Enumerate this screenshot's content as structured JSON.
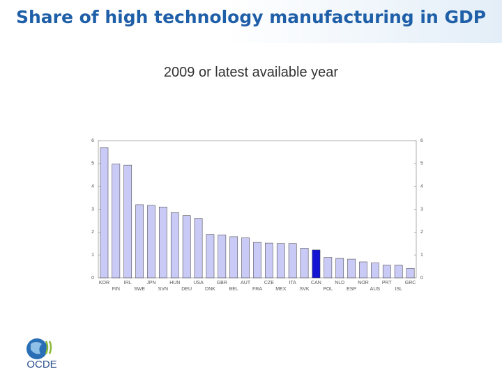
{
  "chart_data": {
    "type": "bar",
    "title": "Share of high technology manufacturing in GDP",
    "subtitle": "2009 or latest available year",
    "categories": [
      "KOR",
      "FIN",
      "IRL",
      "SWE",
      "JPN",
      "SVN",
      "HUN",
      "DEU",
      "USA",
      "DNK",
      "GBR",
      "BEL",
      "AUT",
      "FRA",
      "CZE",
      "MEX",
      "ITA",
      "SVK",
      "CAN",
      "POL",
      "NLD",
      "ESP",
      "NOR",
      "AUS",
      "PRT",
      "ISL",
      "GRC"
    ],
    "values": [
      5.7,
      4.98,
      4.93,
      3.2,
      3.17,
      3.1,
      2.85,
      2.72,
      2.6,
      1.9,
      1.88,
      1.8,
      1.75,
      1.55,
      1.52,
      1.5,
      1.5,
      1.3,
      1.22,
      0.9,
      0.85,
      0.82,
      0.7,
      0.65,
      0.55,
      0.55,
      0.42
    ],
    "colors": [
      "#cacaf6",
      "#cacaf6",
      "#cacaf6",
      "#cacaf6",
      "#cacaf6",
      "#cacaf6",
      "#cacaf6",
      "#cacaf6",
      "#cacaf6",
      "#cacaf6",
      "#cacaf6",
      "#cacaf6",
      "#cacaf6",
      "#cacaf6",
      "#cacaf6",
      "#cacaf6",
      "#cacaf6",
      "#cacaf6",
      "#1414d2",
      "#cacaf6",
      "#cacaf6",
      "#cacaf6",
      "#cacaf6",
      "#cacaf6",
      "#cacaf6",
      "#cacaf6",
      "#cacaf6"
    ],
    "ylim": [
      0,
      6
    ],
    "yticks": [
      0,
      1,
      2,
      3,
      4,
      5,
      6
    ],
    "y2lim": [
      0,
      6
    ],
    "y2ticks": [
      0,
      1,
      2,
      3,
      4,
      5,
      6
    ],
    "grid": false
  },
  "logo": {
    "text": "OCDE"
  }
}
